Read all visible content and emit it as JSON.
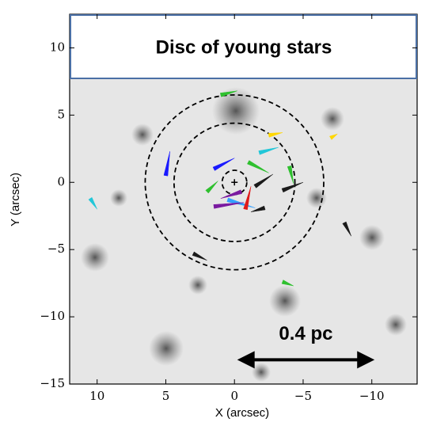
{
  "chart_data": {
    "type": "vector",
    "title": "Disc of young stars",
    "xlabel": "X (arcsec)",
    "ylabel": "Y (arcsec)",
    "xlim": [
      12,
      -13.3
    ],
    "ylim": [
      -15,
      12.5
    ],
    "xticks": [
      10,
      5,
      0,
      {
        "value": -5,
        "label": "−5"
      },
      {
        "value": -10,
        "label": "−10"
      }
    ],
    "yticks": [
      10,
      5,
      0,
      {
        "value": -5,
        "label": "−5"
      },
      {
        "value": -10,
        "label": "−10"
      },
      {
        "value": -15,
        "label": "−15"
      }
    ],
    "circle_radii": [
      0.9,
      4.4,
      6.5
    ],
    "scale_bar": {
      "label": "0.4 pc",
      "x": [
        -0.2,
        -10.2
      ],
      "y": -13.2
    },
    "vectors": [
      {
        "x": 1.5,
        "y": 1,
        "dx": -1.5,
        "dy": 0.8,
        "color": "#1a1aff"
      },
      {
        "x": -0.5,
        "y": -0.7,
        "dx": 1.5,
        "dy": -0.5,
        "color": "#7a1aa0"
      },
      {
        "x": -1.8,
        "y": 2.2,
        "dx": -1.4,
        "dy": 0.4,
        "color": "#22c7d8"
      },
      {
        "x": -1,
        "y": 1.5,
        "dx": -1.5,
        "dy": -0.8,
        "color": "#2ec02e"
      },
      {
        "x": 0.5,
        "y": -1.3,
        "dx": -2,
        "dy": -0.6,
        "color": "#33a0ff"
      },
      {
        "x": -1.5,
        "y": -0.3,
        "dx": -1.3,
        "dy": 0.9,
        "color": "#1a1a1a"
      },
      {
        "x": 2,
        "y": -0.7,
        "dx": -0.8,
        "dy": 0.8,
        "color": "#2ec02e"
      },
      {
        "x": -2.5,
        "y": 3.5,
        "dx": -1,
        "dy": 0.2,
        "color": "#ffd700"
      },
      {
        "x": -2.2,
        "y": -1.9,
        "dx": 1,
        "dy": -0.3,
        "color": "#1a1a1a"
      },
      {
        "x": -3.5,
        "y": -0.6,
        "dx": -1.5,
        "dy": 0.6,
        "color": "#1a1a1a"
      },
      {
        "x": 5,
        "y": 0.5,
        "dx": -0.3,
        "dy": 1.8,
        "color": "#1a1aff"
      },
      {
        "x": -4,
        "y": 1.2,
        "dx": -0.3,
        "dy": -1.3,
        "color": "#2ec02e"
      },
      {
        "x": 1.5,
        "y": -1.8,
        "dx": -2.2,
        "dy": 0.3,
        "color": "#7a1aa0"
      },
      {
        "x": -0.8,
        "y": -2,
        "dx": -0.4,
        "dy": 1.7,
        "color": "#e01a1a"
      },
      {
        "x": 3,
        "y": -5.3,
        "dx": -1,
        "dy": -0.5,
        "color": "#1a1a1a"
      },
      {
        "x": -7,
        "y": 3.3,
        "dx": -0.5,
        "dy": 0.3,
        "color": "#ffd700"
      },
      {
        "x": 10.5,
        "y": -1.2,
        "dx": -0.5,
        "dy": -0.8,
        "color": "#22c7d8"
      },
      {
        "x": -3.5,
        "y": -7.4,
        "dx": -0.8,
        "dy": -0.3,
        "color": "#2ec02e"
      },
      {
        "x": -8,
        "y": -3,
        "dx": -0.5,
        "dy": -1,
        "color": "#1a1a1a"
      },
      {
        "x": 1,
        "y": 6.5,
        "dx": -1.2,
        "dy": 0.3,
        "color": "#2ec02e"
      }
    ]
  }
}
